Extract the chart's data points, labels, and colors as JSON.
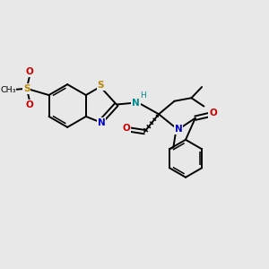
{
  "bg_color": "#e8e8e8",
  "bond_color": "#000000",
  "N_color": "#0000cc",
  "S_color": "#b8860b",
  "O_color": "#cc0000",
  "NH_color": "#008b8b",
  "figsize": [
    3.0,
    3.0
  ],
  "dpi": 100,
  "xlim": [
    0,
    10
  ],
  "ylim": [
    0,
    10
  ]
}
